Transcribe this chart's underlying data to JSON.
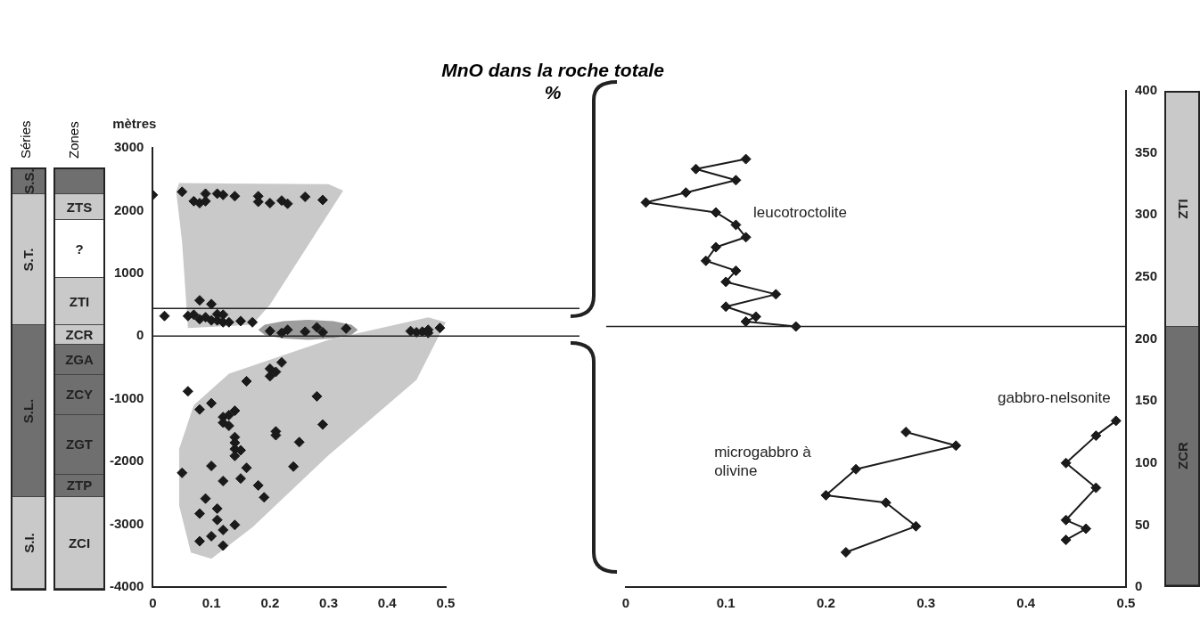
{
  "chart_data": [
    {
      "type": "scatter",
      "title": "MnO dans la roche totale",
      "xlabel": "%",
      "ylabel": "mètres",
      "marker": "diamond",
      "grid": false,
      "legend": false,
      "annotations": [
        "Séries",
        "Zones",
        "S.S.",
        "S.T.",
        "S.L.",
        "S.I.",
        "ZTS",
        "?",
        "ZTI",
        "ZCR",
        "ZGA",
        "ZCY",
        "ZGT",
        "ZTP",
        "ZCI"
      ],
      "series": [
        {
          "type": "area",
          "marker": "none",
          "color": "#c9c9c9",
          "x": [
            0.045,
            0.3,
            0.325,
            0.2,
            0.17,
            0.06,
            0.05,
            0.04
          ],
          "values": [
            2440,
            2420,
            2320,
            500,
            180,
            130,
            1500,
            2300
          ]
        },
        {
          "type": "area",
          "marker": "none",
          "color": "#c9c9c9",
          "x": [
            0.47,
            0.5,
            0.45,
            0.3,
            0.17,
            0.1,
            0.065,
            0.045,
            0.045,
            0.07,
            0.13,
            0.3
          ],
          "values": [
            300,
            220,
            -700,
            -1900,
            -3050,
            -3550,
            -3450,
            -2700,
            -1800,
            -1100,
            -600,
            -60
          ]
        },
        {
          "type": "area",
          "marker": "none",
          "color": "#9d9d9d",
          "x": [
            0.35,
            0.339,
            0.308,
            0.265,
            0.223,
            0.191,
            0.18,
            0.191,
            0.223,
            0.265,
            0.308,
            0.339
          ],
          "values": [
            100,
            180,
            240,
            260,
            240,
            180,
            100,
            20,
            -40,
            -60,
            -40,
            20
          ]
        },
        {
          "color": "#1a1a1a",
          "x": [
            0.0,
            0.05,
            0.07,
            0.08,
            0.09,
            0.09,
            0.11,
            0.12,
            0.14,
            0.18,
            0.18,
            0.2,
            0.22,
            0.23,
            0.26,
            0.29,
            0.08,
            0.1,
            0.02,
            0.06,
            0.07,
            0.08,
            0.09,
            0.1,
            0.11,
            0.12,
            0.11,
            0.12,
            0.13,
            0.15,
            0.17,
            0.2,
            0.22,
            0.23,
            0.26,
            0.28,
            0.29,
            0.33,
            0.44,
            0.45,
            0.46,
            0.47,
            0.47,
            0.49,
            0.06,
            0.08,
            0.1,
            0.12,
            0.12,
            0.13,
            0.14,
            0.13,
            0.14,
            0.14,
            0.14,
            0.14,
            0.15,
            0.16,
            0.2,
            0.2,
            0.21,
            0.22,
            0.21,
            0.21,
            0.28,
            0.29,
            0.25,
            0.24,
            0.05,
            0.1,
            0.16,
            0.15,
            0.12,
            0.18,
            0.19,
            0.09,
            0.08,
            0.11,
            0.11,
            0.12,
            0.14,
            0.1,
            0.08,
            0.12
          ],
          "values": [
            2250,
            2300,
            2150,
            2120,
            2270,
            2150,
            2270,
            2250,
            2230,
            2230,
            2140,
            2120,
            2160,
            2110,
            2220,
            2170,
            570,
            510,
            320,
            320,
            340,
            270,
            300,
            250,
            350,
            340,
            250,
            220,
            220,
            240,
            220,
            80,
            50,
            100,
            70,
            140,
            60,
            120,
            80,
            60,
            70,
            100,
            50,
            130,
            -880,
            -1170,
            -1070,
            -1290,
            -1380,
            -1260,
            -1190,
            -1430,
            -1610,
            -1700,
            -1800,
            -1910,
            -1820,
            -720,
            -520,
            -640,
            -570,
            -420,
            -1520,
            -1580,
            -960,
            -1410,
            -1690,
            -2080,
            -2180,
            -2070,
            -2100,
            -2270,
            -2310,
            -2380,
            -2570,
            -2590,
            -2830,
            -2750,
            -2930,
            -3090,
            -3010,
            -3190,
            -3270,
            -3340
          ]
        }
      ],
      "xlim": [
        0,
        0.5
      ],
      "xticks": [
        0,
        0.1,
        0.2,
        0.3,
        0.4,
        0.5
      ],
      "ylim": [
        -4000,
        3000
      ],
      "yticks": [
        -4000,
        -3000,
        -2000,
        -1000,
        0,
        1000,
        2000,
        3000
      ],
      "ref_lines": [
        {
          "axis": "y",
          "value": 0
        },
        {
          "axis": "y",
          "value": 440
        }
      ]
    },
    {
      "type": "line",
      "marker": "diamond",
      "grid": false,
      "legend": false,
      "annotations": [
        "ZTI",
        "ZCR"
      ],
      "series": [
        {
          "name": "leucotroctolite",
          "color": "#1a1a1a",
          "x": [
            0.12,
            0.07,
            0.11,
            0.06,
            0.02,
            0.09,
            0.11,
            0.12,
            0.09,
            0.08,
            0.11,
            0.1,
            0.15,
            0.1,
            0.13,
            0.12,
            0.17
          ],
          "values": [
            345,
            337,
            328,
            318,
            310,
            302,
            292,
            282,
            274,
            263,
            255,
            246,
            236,
            226,
            218,
            214,
            210
          ]
        },
        {
          "name": "microgabbro à olivine",
          "color": "#1a1a1a",
          "x": [
            0.28,
            0.33,
            0.23,
            0.2,
            0.26,
            0.29,
            0.22
          ],
          "values": [
            125,
            114,
            95,
            74,
            68,
            49,
            28
          ]
        },
        {
          "name": "gabbro-nelsonite",
          "color": "#1a1a1a",
          "x": [
            0.49,
            0.47,
            0.44,
            0.47,
            0.44,
            0.46,
            0.44
          ],
          "values": [
            134,
            122,
            100,
            80,
            54,
            47,
            38
          ]
        }
      ],
      "xlim": [
        0,
        0.5
      ],
      "xticks": [
        0,
        0.1,
        0.2,
        0.3,
        0.4,
        0.5
      ],
      "ylim": [
        0,
        400
      ],
      "yticks": [
        0,
        50,
        100,
        150,
        200,
        250,
        300,
        350,
        400
      ],
      "ref_lines": [
        {
          "axis": "y",
          "value": 210
        }
      ]
    }
  ]
}
